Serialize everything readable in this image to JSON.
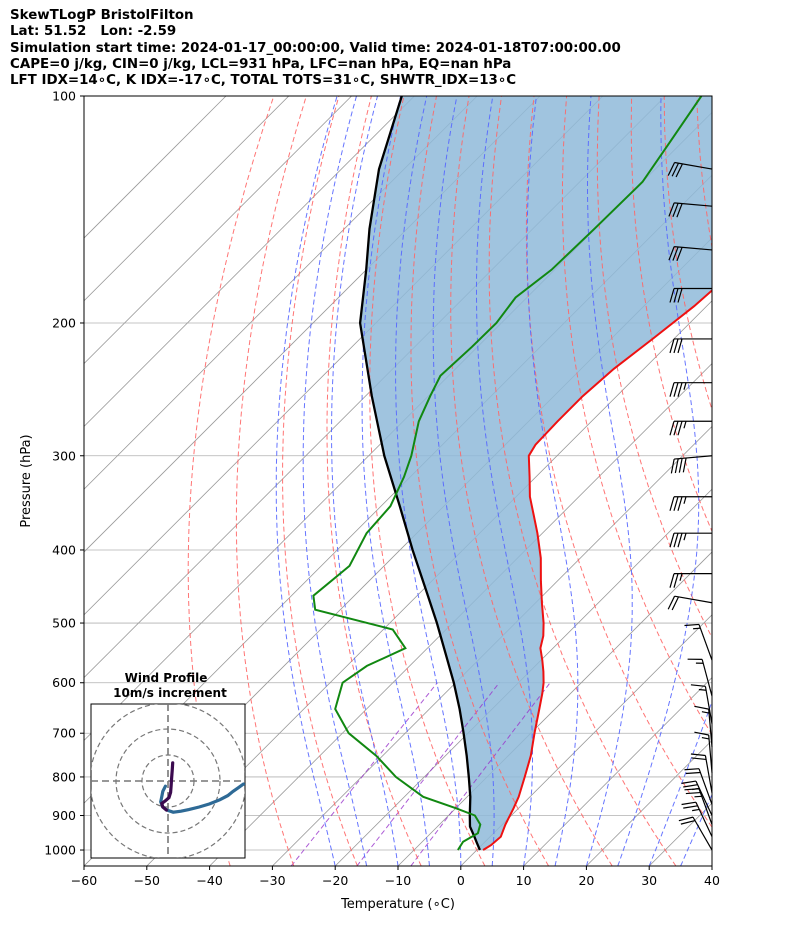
{
  "header": {
    "line1": "SkewTLogP BristolFilton",
    "line2": "Lat: 51.52   Lon: -2.59",
    "line3": "Simulation start time: 2024-01-17_00:00:00, Valid time: 2024-01-18T07:00:00.00",
    "line4": "CAPE=0 j/kg, CIN=0 j/kg, LCL=931 hPa, LFC=nan hPa, EQ=nan hPa",
    "line5": "LFT IDX=14∘C, K IDX=-17∘C, TOTAL TOTS=31∘C, SHWTR_IDX=13∘C"
  },
  "colors": {
    "temperature": "#ee1111",
    "dewpoint": "#118811",
    "parcel": "#000000",
    "shade": "#8fbad9",
    "dry_adiabat": "#ff6666",
    "moist_adiabat": "#5566ff",
    "mixing_ratio": "#9933cc",
    "isotherm": "#999999",
    "hodo_line": "#2e6a96",
    "hodo_low": "#3b0a4f"
  },
  "chart_data": {
    "type": "line",
    "subtype": "skew-T log-P",
    "xlabel": "Temperature (∘C)",
    "ylabel": "Pressure (hPa)",
    "xlim": [
      -60,
      40
    ],
    "ylim": [
      1050,
      100
    ],
    "yscale": "log",
    "grid": true,
    "xticks": [
      -60,
      -50,
      -40,
      -30,
      -20,
      -10,
      0,
      10,
      20,
      30,
      40
    ],
    "xtick_labels": [
      "−60",
      "−50",
      "−40",
      "−30",
      "−20",
      "−10",
      "0",
      "10",
      "20",
      "30",
      "40"
    ],
    "yticks": [
      1000,
      900,
      800,
      700,
      600,
      500,
      400,
      300,
      200,
      100
    ],
    "ytick_labels": [
      "1000",
      "900",
      "800",
      "700",
      "600",
      "500",
      "400",
      "300",
      "200",
      "100"
    ],
    "series": [
      {
        "key": "temperature",
        "p": [
          1000,
          985,
          960,
          925,
          880,
          850,
          800,
          750,
          700,
          650,
          620,
          600,
          580,
          560,
          540,
          520,
          500,
          470,
          440,
          410,
          380,
          360,
          340,
          320,
          300,
          290,
          270,
          250,
          230,
          210,
          190,
          170,
          155,
          140,
          125,
          110,
          100
        ],
        "t": [
          1.0,
          1.5,
          1.7,
          0.5,
          -0.8,
          -1.8,
          -4.0,
          -6.4,
          -9.4,
          -12.5,
          -14.5,
          -16.0,
          -17.8,
          -19.8,
          -22.0,
          -23.5,
          -25.5,
          -29.0,
          -32.6,
          -36.3,
          -40.8,
          -44.2,
          -47.8,
          -51.0,
          -54.5,
          -55.2,
          -55.4,
          -55.4,
          -54.8,
          -53.4,
          -52.0,
          -51.2,
          -52.2,
          -54.6,
          -58.0,
          -62.5,
          -65.5
        ]
      },
      {
        "key": "dewpoint",
        "p": [
          1000,
          975,
          950,
          925,
          900,
          880,
          850,
          800,
          750,
          700,
          650,
          600,
          570,
          540,
          510,
          480,
          460,
          420,
          380,
          350,
          320,
          300,
          270,
          250,
          235,
          215,
          200,
          185,
          170,
          150,
          130,
          115,
          100
        ],
        "t": [
          -3.0,
          -3.5,
          -2.5,
          -3.5,
          -5.8,
          -10.0,
          -17.0,
          -24.5,
          -31.0,
          -39.0,
          -45.0,
          -48.0,
          -46.8,
          -43.5,
          -48.5,
          -64.0,
          -66.5,
          -65.5,
          -68.0,
          -68.5,
          -71.0,
          -73.2,
          -77.5,
          -79.7,
          -81.3,
          -80.9,
          -80.8,
          -81.8,
          -80.5,
          -80.2,
          -80.0,
          -82.0,
          -84.3
        ]
      },
      {
        "key": "parcel",
        "p": [
          1000,
          980,
          960,
          931,
          900,
          850,
          800,
          750,
          700,
          650,
          600,
          550,
          500,
          450,
          400,
          350,
          300,
          250,
          200,
          170,
          150,
          125,
          100
        ],
        "t": [
          0.5,
          -1.0,
          -2.5,
          -4.8,
          -6.6,
          -9.5,
          -12.9,
          -16.6,
          -20.7,
          -25.2,
          -30.3,
          -36.1,
          -42.5,
          -49.8,
          -58.0,
          -67.0,
          -77.5,
          -89.0,
          -102.5,
          -110.0,
          -116.0,
          -124.0,
          -132.0
        ]
      }
    ],
    "shading": "area between parcel and temperature",
    "wind_barbs": {
      "p": [
        1000,
        960,
        925,
        900,
        870,
        840,
        790,
        730,
        680,
        625,
        560,
        470,
        430,
        380,
        340,
        300,
        270,
        240,
        210,
        180,
        160,
        140,
        125
      ],
      "direction_deg": [
        330,
        335,
        340,
        335,
        340,
        350,
        355,
        355,
        350,
        345,
        340,
        280,
        270,
        270,
        270,
        265,
        270,
        270,
        270,
        270,
        275,
        275,
        280
      ],
      "speed_kt": [
        22,
        25,
        27,
        26,
        24,
        22,
        19,
        17,
        16,
        16,
        15,
        20,
        25,
        35,
        35,
        40,
        35,
        35,
        30,
        30,
        30,
        30,
        30
      ]
    },
    "hodograph": {
      "title_line1": "Wind Profile",
      "title_line2": "10m/s increment",
      "u": [
        -0.5,
        -1.0,
        -1.2,
        -1.4,
        -1.0,
        -0.2,
        1.0,
        2.5,
        4.0,
        6.0,
        8.0,
        10.0,
        11.5,
        12.5,
        13.5,
        14.5
      ],
      "v": [
        -1.0,
        -2.0,
        -3.0,
        -4.0,
        -5.0,
        -5.6,
        -6.0,
        -5.8,
        -5.5,
        -5.0,
        -4.4,
        -3.6,
        -2.8,
        -2.0,
        -1.3,
        -0.6
      ],
      "low_u": [
        0.9,
        0.8,
        0.7,
        0.6,
        0.5,
        0.2,
        -0.5,
        -1.2,
        -1.0,
        -0.3
      ],
      "low_v": [
        3.5,
        2.0,
        0.5,
        -1.0,
        -2.2,
        -3.2,
        -3.8,
        -4.3,
        -5.0,
        -5.6
      ]
    }
  }
}
